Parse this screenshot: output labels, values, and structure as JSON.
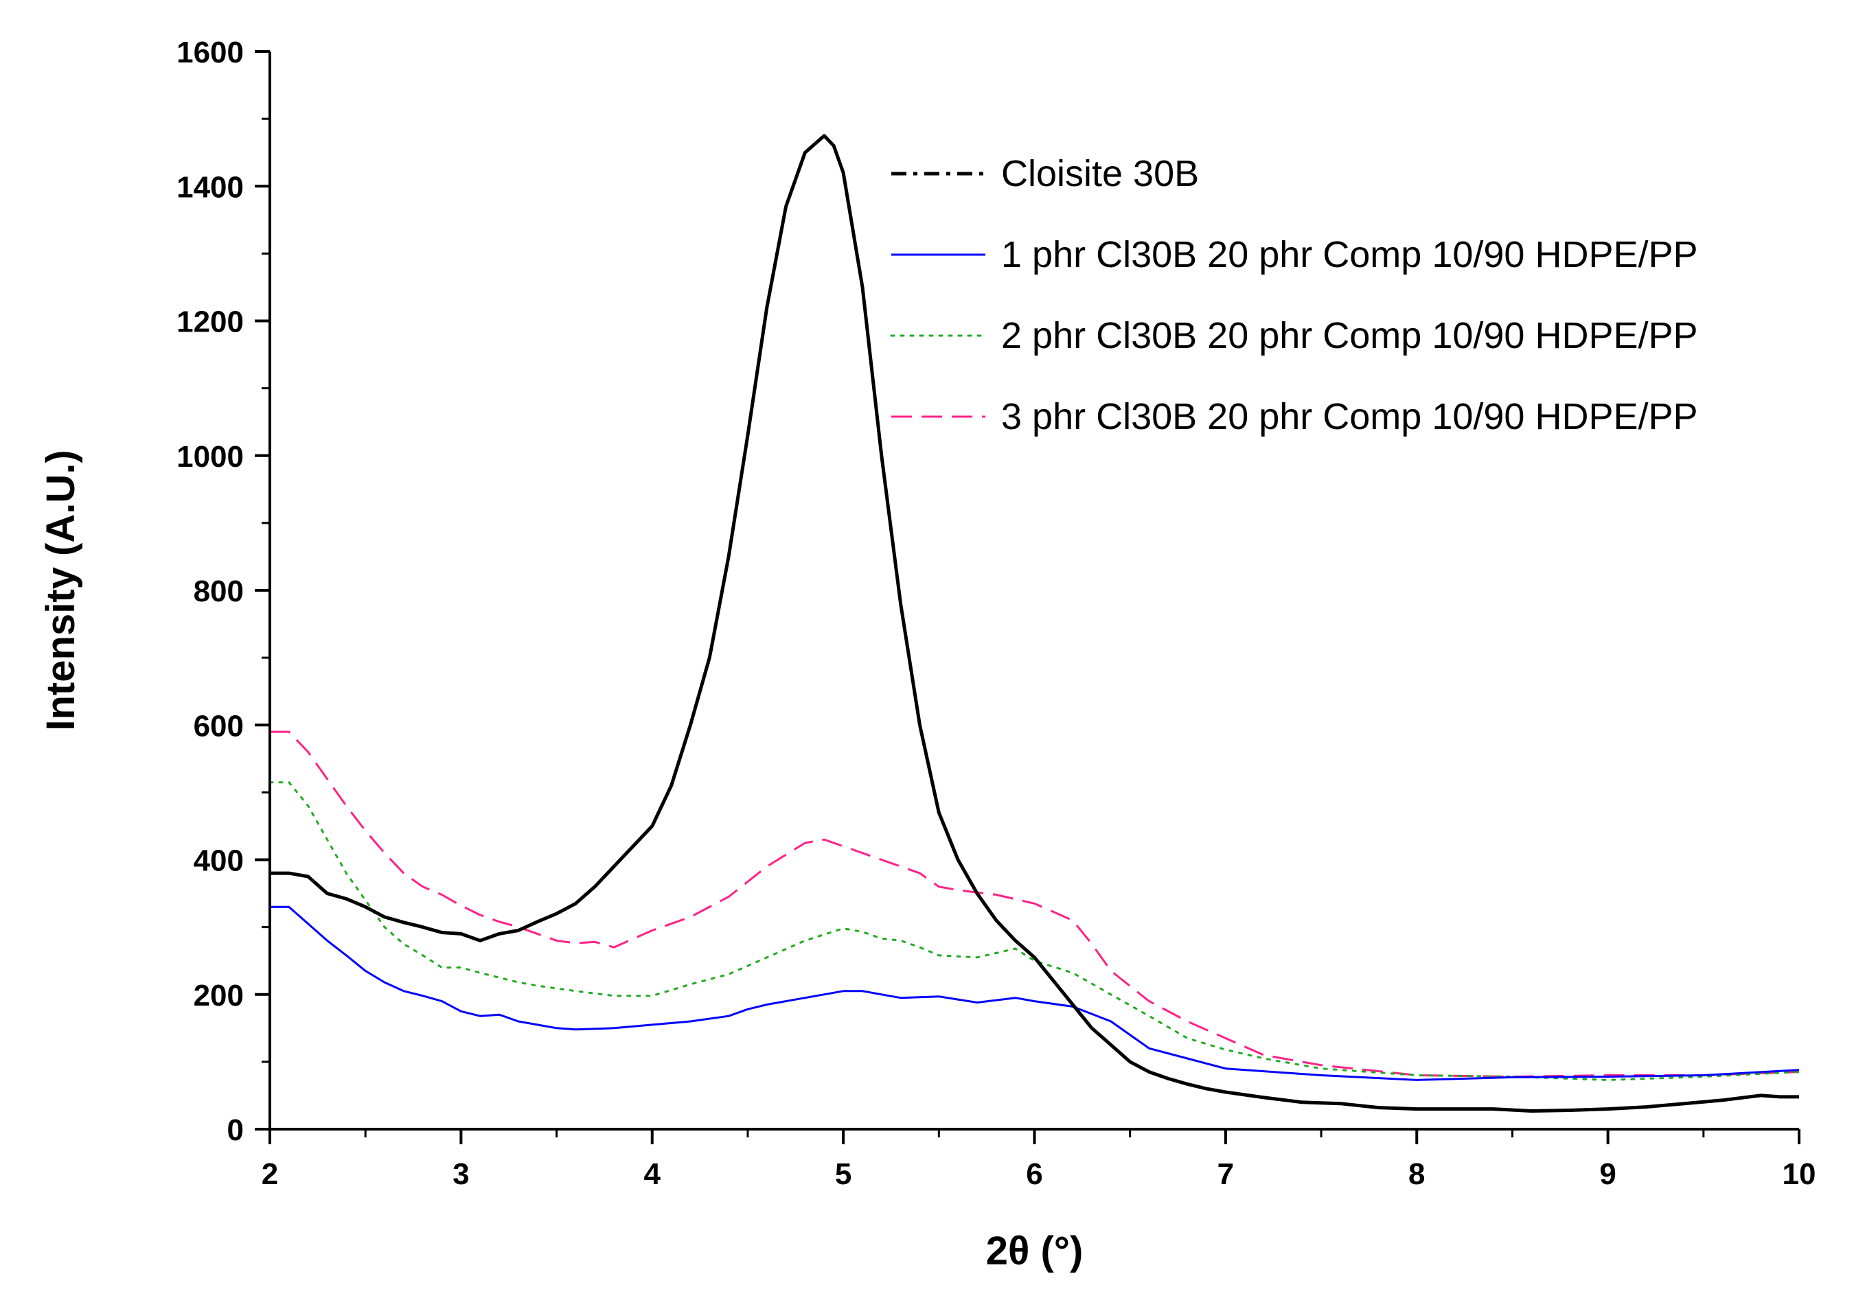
{
  "chart_data": {
    "type": "line",
    "title": "",
    "xlabel": "2θ (°)",
    "ylabel": "Intensity (A.U.)",
    "xlim": [
      2,
      10
    ],
    "ylim": [
      0,
      1600
    ],
    "xticks": [
      2,
      3,
      4,
      5,
      6,
      7,
      8,
      9,
      10
    ],
    "yticks": [
      0,
      200,
      400,
      600,
      800,
      1000,
      1200,
      1400,
      1600
    ],
    "grid": false,
    "legend_position": "top-right",
    "series": [
      {
        "name": "Cloisite 30B",
        "color": "#000000",
        "style": "solid",
        "legend_style": "dashdot",
        "x": [
          2.0,
          2.1,
          2.2,
          2.3,
          2.4,
          2.5,
          2.6,
          2.7,
          2.8,
          2.9,
          3.0,
          3.1,
          3.2,
          3.3,
          3.4,
          3.5,
          3.6,
          3.7,
          3.8,
          3.9,
          4.0,
          4.1,
          4.2,
          4.3,
          4.4,
          4.5,
          4.6,
          4.7,
          4.8,
          4.9,
          4.95,
          5.0,
          5.1,
          5.2,
          5.3,
          5.4,
          5.5,
          5.6,
          5.7,
          5.8,
          5.9,
          6.0,
          6.1,
          6.2,
          6.3,
          6.4,
          6.5,
          6.6,
          6.7,
          6.8,
          6.9,
          7.0,
          7.2,
          7.4,
          7.6,
          7.8,
          8.0,
          8.2,
          8.4,
          8.6,
          8.8,
          9.0,
          9.2,
          9.4,
          9.6,
          9.8,
          9.9,
          10.0
        ],
        "y": [
          380,
          380,
          375,
          350,
          342,
          330,
          315,
          307,
          300,
          292,
          290,
          280,
          290,
          295,
          308,
          320,
          335,
          360,
          390,
          420,
          450,
          510,
          600,
          700,
          850,
          1030,
          1220,
          1370,
          1450,
          1475,
          1460,
          1420,
          1250,
          1000,
          780,
          600,
          470,
          400,
          350,
          310,
          280,
          255,
          220,
          185,
          150,
          125,
          100,
          85,
          75,
          67,
          60,
          55,
          47,
          40,
          38,
          32,
          30,
          30,
          30,
          27,
          28,
          30,
          33,
          38,
          43,
          50,
          48,
          48
        ]
      },
      {
        "name": "1 phr Cl30B 20 phr Comp 10/90 HDPE/PP",
        "color": "#0000ff",
        "style": "solid",
        "legend_style": "solid",
        "x": [
          2.0,
          2.1,
          2.2,
          2.3,
          2.4,
          2.5,
          2.6,
          2.7,
          2.8,
          2.9,
          3.0,
          3.1,
          3.2,
          3.3,
          3.4,
          3.5,
          3.6,
          3.8,
          4.0,
          4.2,
          4.4,
          4.5,
          4.6,
          4.8,
          5.0,
          5.1,
          5.2,
          5.3,
          5.5,
          5.7,
          5.9,
          6.0,
          6.2,
          6.4,
          6.6,
          6.8,
          7.0,
          7.5,
          8.0,
          8.5,
          9.0,
          9.5,
          10.0
        ],
        "y": [
          330,
          330,
          305,
          280,
          258,
          235,
          218,
          205,
          198,
          190,
          175,
          168,
          170,
          160,
          155,
          150,
          148,
          150,
          155,
          160,
          168,
          178,
          185,
          195,
          205,
          205,
          200,
          195,
          197,
          188,
          195,
          190,
          182,
          160,
          120,
          105,
          90,
          80,
          73,
          77,
          78,
          80,
          88
        ]
      },
      {
        "name": "2 phr Cl30B 20 phr Comp 10/90 HDPE/PP",
        "color": "#22aa22",
        "style": "dotted",
        "legend_style": "dotted",
        "x": [
          2.0,
          2.1,
          2.2,
          2.3,
          2.4,
          2.5,
          2.6,
          2.7,
          2.8,
          2.9,
          3.0,
          3.1,
          3.2,
          3.3,
          3.4,
          3.6,
          3.8,
          4.0,
          4.2,
          4.4,
          4.6,
          4.8,
          5.0,
          5.1,
          5.2,
          5.3,
          5.4,
          5.5,
          5.7,
          5.9,
          6.0,
          6.2,
          6.4,
          6.6,
          6.8,
          7.0,
          7.2,
          7.5,
          8.0,
          8.5,
          9.0,
          9.5,
          10.0
        ],
        "y": [
          515,
          515,
          480,
          430,
          380,
          340,
          300,
          275,
          258,
          240,
          240,
          232,
          225,
          218,
          213,
          205,
          198,
          198,
          215,
          230,
          255,
          280,
          298,
          293,
          283,
          280,
          270,
          258,
          255,
          268,
          250,
          232,
          200,
          168,
          135,
          118,
          105,
          90,
          80,
          78,
          73,
          78,
          85
        ]
      },
      {
        "name": "3 phr Cl30B 20 phr Comp 10/90 HDPE/PP",
        "color": "#ff2288",
        "style": "dashed",
        "legend_style": "dashed",
        "x": [
          2.0,
          2.1,
          2.2,
          2.3,
          2.4,
          2.5,
          2.6,
          2.7,
          2.8,
          2.9,
          3.0,
          3.1,
          3.2,
          3.3,
          3.4,
          3.5,
          3.6,
          3.7,
          3.8,
          4.0,
          4.2,
          4.4,
          4.6,
          4.8,
          4.9,
          5.0,
          5.2,
          5.4,
          5.5,
          5.6,
          5.8,
          6.0,
          6.2,
          6.3,
          6.4,
          6.6,
          6.8,
          7.0,
          7.2,
          7.5,
          8.0,
          8.5,
          9.0,
          9.5,
          10.0
        ],
        "y": [
          590,
          590,
          560,
          520,
          480,
          443,
          410,
          380,
          360,
          348,
          332,
          318,
          308,
          300,
          290,
          280,
          276,
          278,
          270,
          295,
          315,
          345,
          390,
          425,
          430,
          420,
          400,
          380,
          360,
          355,
          348,
          335,
          310,
          275,
          235,
          190,
          160,
          135,
          110,
          95,
          80,
          78,
          80,
          80,
          85
        ]
      }
    ]
  }
}
